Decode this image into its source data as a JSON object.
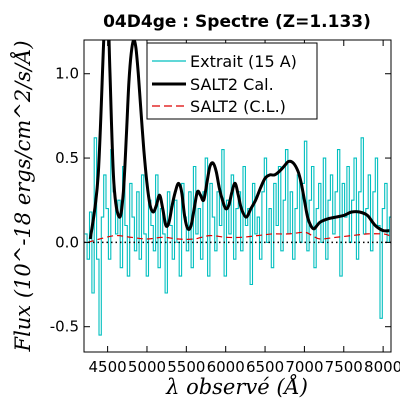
{
  "chart_data": {
    "type": "line",
    "title": "04D4ge : Spectre (Z=1.133)",
    "xlabel": "λ observé (Å)",
    "ylabel": "Flux (10^-18 ergs/cm^2/s/Å)",
    "xlim": [
      4200,
      8100
    ],
    "ylim": [
      -0.65,
      1.2
    ],
    "x_ticks": [
      4500,
      5000,
      5500,
      6000,
      6500,
      7000,
      7500,
      8000
    ],
    "y_ticks": [
      -0.5,
      0.0,
      0.5,
      1.0
    ],
    "y_tick_labels": [
      "-0.5",
      "0.0",
      "0.5",
      "1.0"
    ],
    "zero_line": true,
    "grid": false,
    "legend": {
      "position": "top-center"
    },
    "series": [
      {
        "name": "Extrait (15 A)",
        "color": "#00bfbf",
        "style": "steps",
        "x": [
          4210,
          4240,
          4270,
          4300,
          4330,
          4360,
          4390,
          4420,
          4450,
          4480,
          4510,
          4540,
          4570,
          4600,
          4630,
          4660,
          4690,
          4720,
          4750,
          4780,
          4810,
          4840,
          4870,
          4900,
          4930,
          4960,
          4990,
          5020,
          5050,
          5080,
          5110,
          5140,
          5170,
          5200,
          5230,
          5260,
          5290,
          5320,
          5350,
          5380,
          5410,
          5440,
          5470,
          5500,
          5530,
          5560,
          5590,
          5620,
          5650,
          5680,
          5710,
          5740,
          5770,
          5800,
          5830,
          5860,
          5890,
          5920,
          5950,
          5980,
          6010,
          6040,
          6070,
          6100,
          6130,
          6160,
          6190,
          6220,
          6250,
          6280,
          6310,
          6340,
          6370,
          6400,
          6430,
          6460,
          6490,
          6520,
          6550,
          6580,
          6610,
          6640,
          6670,
          6700,
          6730,
          6760,
          6790,
          6820,
          6850,
          6880,
          6910,
          6940,
          6970,
          7000,
          7030,
          7060,
          7090,
          7120,
          7150,
          7180,
          7210,
          7240,
          7270,
          7300,
          7330,
          7360,
          7390,
          7420,
          7450,
          7480,
          7510,
          7540,
          7570,
          7600,
          7630,
          7660,
          7690,
          7720,
          7750,
          7780,
          7810,
          7840,
          7870,
          7900,
          7930,
          7960,
          7990,
          8020,
          8050,
          8080
        ],
        "y": [
          0.05,
          -0.1,
          0.18,
          -0.3,
          0.62,
          -0.1,
          -0.55,
          0.15,
          0.4,
          0.2,
          -0.1,
          0.55,
          0.3,
          0.05,
          0.25,
          -0.15,
          0.45,
          0.1,
          -0.2,
          0.35,
          0.15,
          -0.05,
          0.3,
          -0.1,
          0.4,
          0.05,
          -0.2,
          0.25,
          0.1,
          -0.05,
          0.4,
          -0.15,
          0.2,
          0.05,
          -0.3,
          0.3,
          0.1,
          -0.1,
          0.25,
          0.0,
          -0.2,
          0.35,
          0.15,
          -0.05,
          0.3,
          -0.15,
          0.45,
          0.05,
          0.2,
          -0.1,
          0.3,
          0.5,
          -0.2,
          0.35,
          0.15,
          -0.05,
          0.3,
          0.1,
          0.55,
          -0.2,
          0.25,
          0.05,
          0.4,
          -0.1,
          0.2,
          0.3,
          -0.05,
          0.45,
          0.1,
          0.2,
          -0.25,
          0.35,
          0.05,
          0.15,
          -0.1,
          0.3,
          0.5,
          0.0,
          0.2,
          -0.15,
          0.35,
          0.1,
          0.45,
          -0.05,
          0.25,
          0.55,
          0.05,
          0.3,
          -0.1,
          0.2,
          0.4,
          0.0,
          0.35,
          0.6,
          -0.05,
          0.25,
          0.45,
          -0.15,
          0.2,
          0.35,
          0.0,
          0.5,
          -0.1,
          0.25,
          0.4,
          0.05,
          0.3,
          0.55,
          -0.2,
          0.35,
          0.15,
          0.45,
          0.0,
          0.25,
          0.5,
          -0.1,
          0.3,
          0.62,
          0.05,
          0.2,
          0.4,
          -0.05,
          0.3,
          0.5,
          0.1,
          -0.45,
          0.2,
          0.35,
          0.0,
          0.15
        ]
      },
      {
        "name": "SALT2 Cal.",
        "color": "#000000",
        "style": "line",
        "x": [
          4280,
          4380,
          4460,
          4500,
          4530,
          4580,
          4650,
          4700,
          4740,
          4770,
          4800,
          4830,
          4860,
          4890,
          4920,
          4960,
          5000,
          5040,
          5080,
          5120,
          5160,
          5200,
          5240,
          5280,
          5320,
          5360,
          5400,
          5440,
          5480,
          5520,
          5560,
          5600,
          5640,
          5680,
          5720,
          5760,
          5800,
          5840,
          5880,
          5920,
          5960,
          6000,
          6040,
          6080,
          6120,
          6160,
          6200,
          6260,
          6320,
          6380,
          6440,
          6500,
          6560,
          6620,
          6680,
          6740,
          6800,
          6860,
          6920,
          6960,
          7000,
          7040,
          7080,
          7120,
          7160,
          7200,
          7300,
          7400,
          7500,
          7600,
          7700,
          7800,
          7900,
          8000,
          8080
        ],
        "y": [
          0.02,
          0.4,
          1.3,
          1.45,
          1.0,
          0.35,
          0.15,
          0.3,
          0.65,
          0.95,
          1.12,
          1.2,
          1.15,
          1.0,
          0.8,
          0.55,
          0.35,
          0.22,
          0.18,
          0.22,
          0.28,
          0.2,
          0.1,
          0.12,
          0.22,
          0.3,
          0.35,
          0.3,
          0.15,
          0.08,
          0.1,
          0.2,
          0.3,
          0.28,
          0.25,
          0.35,
          0.45,
          0.47,
          0.42,
          0.32,
          0.25,
          0.2,
          0.22,
          0.3,
          0.35,
          0.28,
          0.2,
          0.15,
          0.2,
          0.25,
          0.32,
          0.38,
          0.4,
          0.4,
          0.42,
          0.45,
          0.48,
          0.47,
          0.42,
          0.35,
          0.25,
          0.15,
          0.1,
          0.08,
          0.1,
          0.12,
          0.14,
          0.15,
          0.16,
          0.18,
          0.18,
          0.16,
          0.1,
          0.07,
          0.07
        ]
      },
      {
        "name": "SALT2 (C.L.)",
        "color": "#dd0000",
        "style": "dashed",
        "x": [
          4250,
          4400,
          4600,
          4800,
          5000,
          5200,
          5400,
          5600,
          5800,
          6000,
          6200,
          6400,
          6600,
          6800,
          7000,
          7100,
          7200,
          7400,
          7600,
          7800,
          8000,
          8080
        ],
        "y": [
          0.0,
          0.02,
          0.04,
          0.03,
          0.02,
          0.03,
          0.02,
          0.02,
          0.04,
          0.03,
          0.03,
          0.04,
          0.05,
          0.05,
          0.06,
          0.04,
          0.02,
          0.03,
          0.04,
          0.05,
          0.05,
          0.04
        ]
      }
    ]
  }
}
